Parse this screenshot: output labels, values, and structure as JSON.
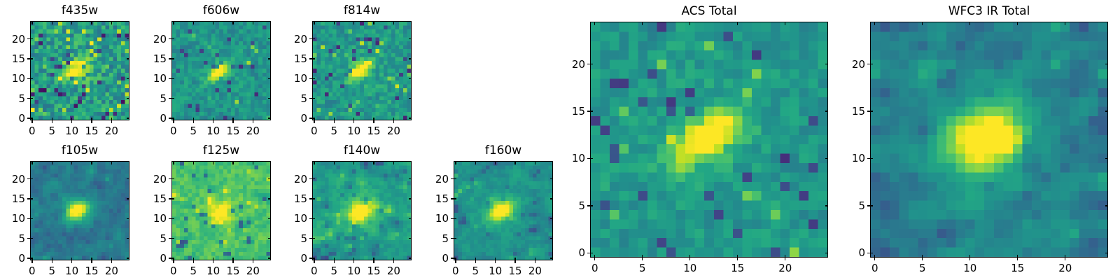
{
  "figure": {
    "background_color": "#ffffff",
    "text_color": "#000000",
    "colormap_colors": {
      "viridis_low": "#440154",
      "viridis_mid": "#21918c",
      "viridis_high": "#fde725"
    }
  },
  "chart_data": [
    {
      "type": "heatmap",
      "title": "f435w",
      "colormap": "viridis",
      "grid": 25,
      "x_ticks": [
        0,
        5,
        10,
        15,
        20
      ],
      "y_ticks": [
        0,
        5,
        10,
        15,
        20
      ],
      "axis_range": [
        -0.5,
        24.5
      ],
      "grid_lines": false,
      "panel": {
        "size": "small",
        "row": 0,
        "col": 0
      },
      "appearance": {
        "seed": 11,
        "bg": 0.54,
        "noise": 0.17,
        "dark_prob": 0.06,
        "dark_depth": 0.17,
        "bright_prob": 0.08,
        "blur": 0.0,
        "blob": {
          "cx": 11.3,
          "cy": 12.2,
          "amp": 0.55,
          "sx": 2.4,
          "sy": 1.2,
          "angle": 38
        },
        "halo": {
          "amp": 0.08,
          "sigma": 3.5
        }
      }
    },
    {
      "type": "heatmap",
      "title": "f606w",
      "colormap": "viridis",
      "grid": 25,
      "x_ticks": [
        0,
        5,
        10,
        15,
        20
      ],
      "y_ticks": [
        0,
        5,
        10,
        15,
        20
      ],
      "axis_range": [
        -0.5,
        24.5
      ],
      "grid_lines": false,
      "panel": {
        "size": "small",
        "row": 0,
        "col": 1
      },
      "appearance": {
        "seed": 22,
        "bg": 0.52,
        "noise": 0.12,
        "dark_prob": 0.04,
        "dark_depth": 0.17,
        "bright_prob": 0.02,
        "blur": 0.2,
        "blob": {
          "cx": 11.5,
          "cy": 12.0,
          "amp": 0.6,
          "sx": 2.1,
          "sy": 1.05,
          "angle": 38
        },
        "halo": {
          "amp": 0.06,
          "sigma": 3.5
        }
      }
    },
    {
      "type": "heatmap",
      "title": "f814w",
      "colormap": "viridis",
      "grid": 25,
      "x_ticks": [
        0,
        5,
        10,
        15,
        20
      ],
      "y_ticks": [
        0,
        5,
        10,
        15,
        20
      ],
      "axis_range": [
        -0.5,
        24.5
      ],
      "grid_lines": false,
      "panel": {
        "size": "small",
        "row": 0,
        "col": 2
      },
      "appearance": {
        "seed": 33,
        "bg": 0.53,
        "noise": 0.13,
        "dark_prob": 0.05,
        "dark_depth": 0.17,
        "bright_prob": 0.03,
        "blur": 0.15,
        "blob": {
          "cx": 11.5,
          "cy": 12.0,
          "amp": 0.6,
          "sx": 2.4,
          "sy": 1.15,
          "angle": 38
        },
        "halo": {
          "amp": 0.07,
          "sigma": 4.0
        }
      }
    },
    {
      "type": "heatmap",
      "title": "f105w",
      "colormap": "viridis",
      "grid": 25,
      "x_ticks": [
        0,
        5,
        10,
        15,
        20
      ],
      "y_ticks": [
        0,
        5,
        10,
        15,
        20
      ],
      "axis_range": [
        -0.5,
        24.5
      ],
      "grid_lines": false,
      "panel": {
        "size": "small",
        "row": 1,
        "col": 0
      },
      "appearance": {
        "seed": 44,
        "bg": 0.41,
        "noise": 0.15,
        "dark_prob": 0.06,
        "dark_depth": 0.17,
        "bright_prob": 0.02,
        "blur": 0.8,
        "blob": {
          "cx": 11.3,
          "cy": 12.0,
          "amp": 0.65,
          "sx": 1.9,
          "sy": 1.55,
          "angle": 30
        },
        "halo": {
          "amp": 0.08,
          "sigma": 4.0
        }
      }
    },
    {
      "type": "heatmap",
      "title": "f125w",
      "colormap": "viridis",
      "grid": 25,
      "x_ticks": [
        0,
        5,
        10,
        15,
        20
      ],
      "y_ticks": [
        0,
        5,
        10,
        15,
        20
      ],
      "axis_range": [
        -0.5,
        24.5
      ],
      "grid_lines": false,
      "panel": {
        "size": "small",
        "row": 1,
        "col": 1
      },
      "appearance": {
        "seed": 55,
        "bg": 0.71,
        "noise": 0.13,
        "dark_prob": 0.05,
        "dark_depth": 0.17,
        "bright_prob": 0.04,
        "blur": 0.5,
        "blob": {
          "cx": 12.0,
          "cy": 11.8,
          "amp": 0.33,
          "sx": 2.3,
          "sy": 1.7,
          "angle": 30
        },
        "halo": {
          "amp": 0.05,
          "sigma": 4.0
        }
      }
    },
    {
      "type": "heatmap",
      "title": "f140w",
      "colormap": "viridis",
      "grid": 25,
      "x_ticks": [
        0,
        5,
        10,
        15,
        20
      ],
      "y_ticks": [
        0,
        5,
        10,
        15,
        20
      ],
      "axis_range": [
        -0.5,
        24.5
      ],
      "grid_lines": false,
      "panel": {
        "size": "small",
        "row": 1,
        "col": 2
      },
      "appearance": {
        "seed": 66,
        "bg": 0.55,
        "noise": 0.14,
        "dark_prob": 0.04,
        "dark_depth": 0.17,
        "bright_prob": 0.05,
        "blur": 0.7,
        "blob": {
          "cx": 11.5,
          "cy": 11.8,
          "amp": 0.5,
          "sx": 2.4,
          "sy": 1.7,
          "angle": 32
        },
        "halo": {
          "amp": 0.1,
          "sigma": 4.5
        }
      }
    },
    {
      "type": "heatmap",
      "title": "f160w",
      "colormap": "viridis",
      "grid": 25,
      "x_ticks": [
        0,
        5,
        10,
        15,
        20
      ],
      "y_ticks": [
        0,
        5,
        10,
        15,
        20
      ],
      "axis_range": [
        -0.5,
        24.5
      ],
      "grid_lines": false,
      "panel": {
        "size": "small",
        "row": 1,
        "col": 3
      },
      "appearance": {
        "seed": 77,
        "bg": 0.5,
        "noise": 0.13,
        "dark_prob": 0.05,
        "dark_depth": 0.17,
        "bright_prob": 0.02,
        "blur": 0.7,
        "blob": {
          "cx": 11.5,
          "cy": 12.0,
          "amp": 0.58,
          "sx": 2.5,
          "sy": 1.4,
          "angle": 35
        },
        "halo": {
          "amp": 0.08,
          "sigma": 4.5
        }
      }
    },
    {
      "type": "heatmap",
      "title": "ACS Total",
      "colormap": "viridis",
      "grid": 25,
      "x_ticks": [
        0,
        5,
        10,
        15,
        20
      ],
      "y_ticks": [
        0,
        5,
        10,
        15,
        20
      ],
      "axis_range": [
        -0.5,
        24.5
      ],
      "grid_lines": false,
      "panel": {
        "size": "large",
        "row": 0,
        "col": 0
      },
      "appearance": {
        "seed": 88,
        "bg": 0.53,
        "noise": 0.11,
        "dark_prob": 0.05,
        "dark_depth": 0.17,
        "bright_prob": 0.03,
        "blur": 0.25,
        "blob": {
          "cx": 11.7,
          "cy": 12.2,
          "amp": 0.58,
          "sx": 2.7,
          "sy": 1.35,
          "angle": 33
        },
        "halo": {
          "amp": 0.07,
          "sigma": 4.5
        }
      }
    },
    {
      "type": "heatmap",
      "title": "WFC3 IR Total",
      "colormap": "viridis",
      "grid": 25,
      "x_ticks": [
        0,
        5,
        10,
        15,
        20
      ],
      "y_ticks": [
        0,
        5,
        10,
        15,
        20
      ],
      "axis_range": [
        -0.5,
        24.5
      ],
      "grid_lines": false,
      "panel": {
        "size": "large",
        "row": 0,
        "col": 1
      },
      "appearance": {
        "seed": 99,
        "bg": 0.44,
        "noise": 0.15,
        "dark_prob": 0.08,
        "dark_depth": 0.17,
        "bright_prob": 0.02,
        "blur": 0.8,
        "blob": {
          "cx": 11.5,
          "cy": 12.0,
          "amp": 0.66,
          "sx": 2.6,
          "sy": 2.0,
          "angle": 30
        },
        "halo": {
          "amp": 0.14,
          "sigma": 5.0
        }
      }
    }
  ]
}
